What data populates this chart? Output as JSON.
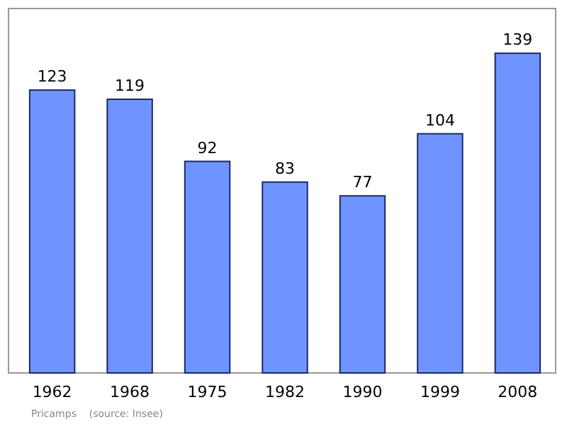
{
  "chart_data": {
    "type": "bar",
    "categories": [
      "1962",
      "1968",
      "1975",
      "1982",
      "1990",
      "1999",
      "2008"
    ],
    "values": [
      123,
      119,
      92,
      83,
      77,
      104,
      139
    ],
    "color": "#7094ff",
    "data_labels": true,
    "annotations": [
      "Pricamps    (source: Insee)"
    ]
  }
}
